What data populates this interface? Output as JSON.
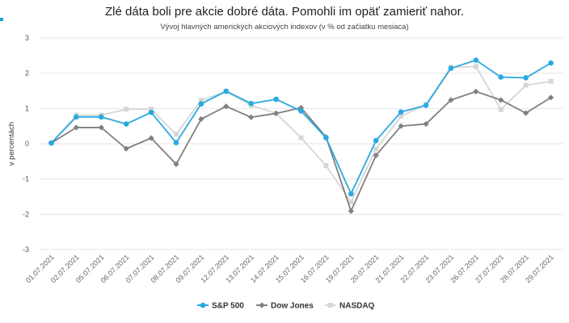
{
  "chart_data": {
    "type": "line",
    "title": "Zlé dáta boli pre akcie dobré dáta. Pomohli im opäť zamieriť nahor.",
    "subtitle": "Vývoj hlavných amerických akciových indexov (v % od začiatku mesiaca)",
    "ylabel": "v percentách",
    "xlabel": "",
    "ylim": [
      -3,
      3
    ],
    "yticks": [
      -3,
      -2,
      -1,
      0,
      1,
      2,
      3
    ],
    "grid": true,
    "legend_position": "bottom-center",
    "x": [
      "01.07.2021",
      "02.07.2021",
      "05.07.2021",
      "06.07.2021",
      "07.07.2021",
      "08.07.2021",
      "09.07.2021",
      "12.07.2021",
      "13.07.2021",
      "14.07.2021",
      "15.07.2021",
      "16.07.2021",
      "19.07.2021",
      "20.07.2021",
      "21.07.2021",
      "22.07.2021",
      "23.07.2021",
      "26.07.2021",
      "27.07.2021",
      "28.07.2021",
      "29.07.2021"
    ],
    "series": [
      {
        "name": "S&P 500",
        "color": "#29a9e0",
        "marker": "circle",
        "values": [
          0.02,
          0.76,
          0.76,
          0.56,
          0.89,
          0.03,
          1.13,
          1.49,
          1.14,
          1.26,
          0.93,
          0.17,
          -1.42,
          0.09,
          0.9,
          1.09,
          2.14,
          2.37,
          1.89,
          1.87,
          2.29
        ]
      },
      {
        "name": "Dow Jones",
        "color": "#808080",
        "marker": "diamond",
        "values": [
          0.02,
          0.46,
          0.46,
          -0.14,
          0.16,
          -0.58,
          0.7,
          1.06,
          0.75,
          0.86,
          1.02,
          0.19,
          -1.91,
          -0.33,
          0.5,
          0.56,
          1.24,
          1.48,
          1.24,
          0.87,
          1.31
        ]
      },
      {
        "name": "NASDAQ",
        "color": "#d6d6d6",
        "marker": "square",
        "values": [
          0.02,
          0.81,
          0.81,
          0.98,
          0.98,
          0.27,
          1.23,
          1.48,
          1.09,
          0.86,
          0.17,
          -0.62,
          -1.65,
          -0.15,
          0.78,
          1.11,
          2.17,
          2.19,
          0.97,
          1.66,
          1.77
        ]
      }
    ]
  }
}
